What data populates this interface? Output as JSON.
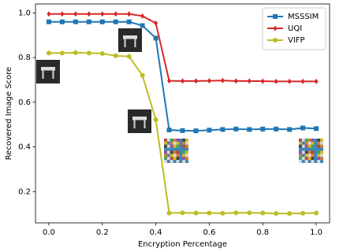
{
  "chart_data": {
    "type": "line",
    "x_label": "Encryption Percentage",
    "y_label": "Recovered Image Score",
    "x": [
      0,
      0.05,
      0.1,
      0.15,
      0.2,
      0.25,
      0.3,
      0.35,
      0.4,
      0.45,
      0.5,
      0.55,
      0.6,
      0.65,
      0.7,
      0.75,
      0.8,
      0.85,
      0.9,
      0.95,
      1.0
    ],
    "series": [
      {
        "name": "MSSSIM",
        "color": "#1f77b4",
        "marker": "square",
        "values": [
          0.96,
          0.96,
          0.96,
          0.96,
          0.96,
          0.96,
          0.96,
          0.943,
          0.887,
          0.476,
          0.473,
          0.472,
          0.475,
          0.478,
          0.48,
          0.478,
          0.48,
          0.48,
          0.478,
          0.485,
          0.482
        ]
      },
      {
        "name": "UQI",
        "color": "#d62728",
        "marker": "diamond",
        "values": [
          0.995,
          0.995,
          0.995,
          0.995,
          0.995,
          0.995,
          0.995,
          0.986,
          0.954,
          0.696,
          0.695,
          0.695,
          0.696,
          0.697,
          0.695,
          0.695,
          0.694,
          0.693,
          0.693,
          0.693,
          0.693
        ]
      },
      {
        "name": "VIFP",
        "color": "#bcbd22",
        "marker": "circle",
        "values": [
          0.82,
          0.82,
          0.822,
          0.82,
          0.818,
          0.808,
          0.805,
          0.72,
          0.522,
          0.104,
          0.105,
          0.104,
          0.104,
          0.103,
          0.105,
          0.105,
          0.104,
          0.102,
          0.102,
          0.103,
          0.104
        ]
      }
    ],
    "xlim": [
      -0.05,
      1.05
    ],
    "ylim": [
      0.06,
      1.04
    ],
    "xticks": [
      {
        "value": 0,
        "label": "0.0"
      },
      0.2,
      0.4,
      0.6,
      0.8,
      {
        "value": 1,
        "label": "1.0"
      }
    ],
    "yticks": [
      0.2,
      0.4,
      0.6,
      0.8,
      {
        "value": 1,
        "label": "1.0"
      }
    ],
    "legend": "upper right"
  }
}
